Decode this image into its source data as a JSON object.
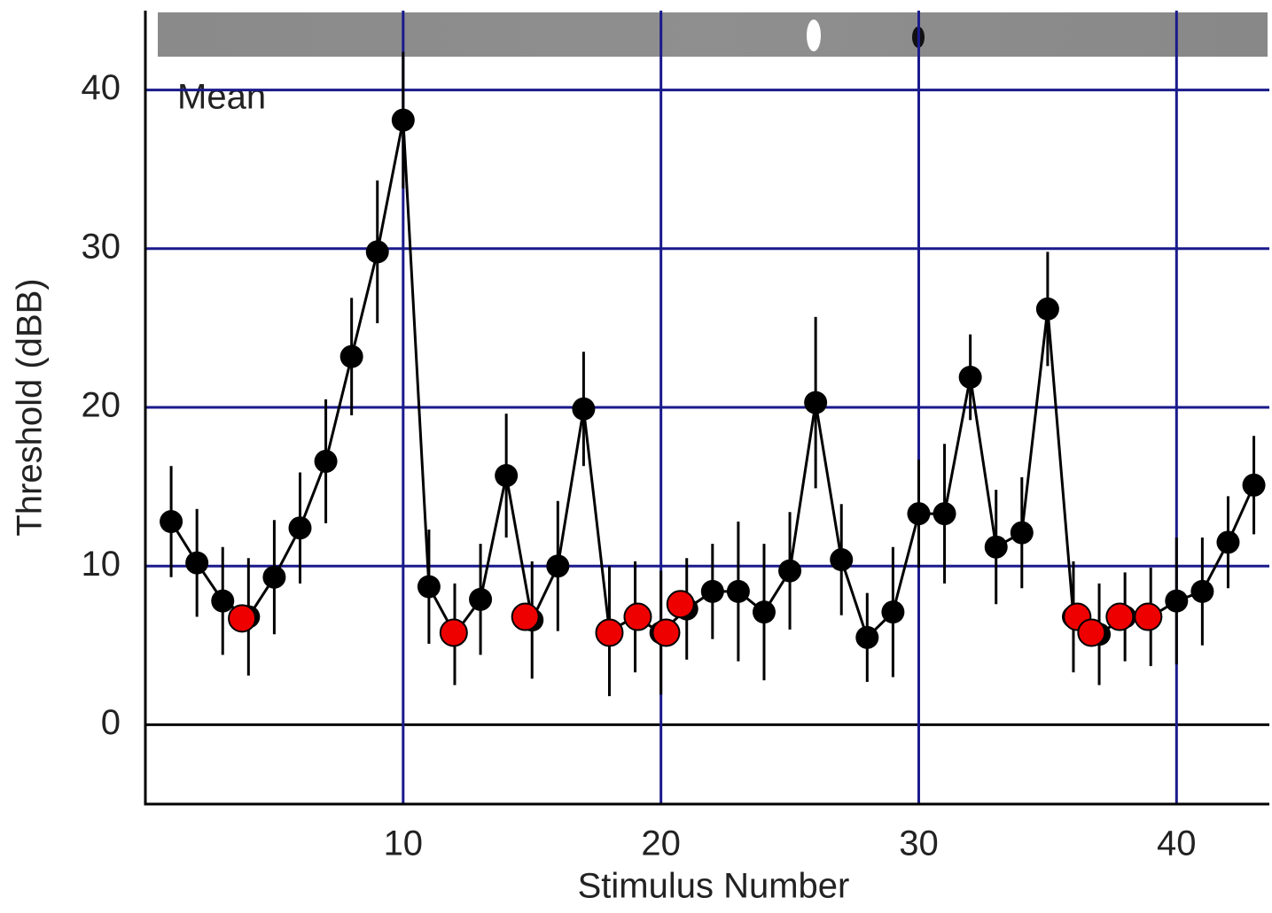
{
  "chart_data": {
    "type": "line",
    "xlabel": "Stimulus Number",
    "ylabel": "Threshold (dBB)",
    "annotation": "Mean",
    "xlim": [
      0,
      43.6
    ],
    "ylim": [
      -5,
      45
    ],
    "xticks": [
      10,
      20,
      30,
      40
    ],
    "yticks": [
      0,
      10,
      20,
      30,
      40
    ],
    "grid": true,
    "grid_color": "#1a1a8c",
    "zero_line_color": "#000000",
    "series": [
      {
        "color": "#000000",
        "style": "line-errorbars",
        "x": [
          1,
          2,
          3,
          4,
          5,
          6,
          7,
          8,
          9,
          10,
          11,
          12,
          13,
          14,
          15,
          16,
          17,
          18,
          19,
          20,
          21,
          22,
          23,
          24,
          25,
          26,
          27,
          28,
          29,
          30,
          31,
          32,
          33,
          34,
          35,
          36,
          37,
          38,
          39,
          40,
          41,
          42,
          43
        ],
        "values": [
          12.8,
          10.2,
          7.8,
          6.8,
          9.3,
          12.4,
          16.6,
          23.2,
          29.8,
          38.1,
          8.7,
          5.7,
          7.9,
          15.7,
          6.6,
          10.0,
          19.9,
          5.9,
          6.8,
          5.8,
          7.3,
          8.4,
          8.4,
          7.1,
          9.7,
          20.3,
          10.4,
          5.5,
          7.1,
          13.3,
          13.3,
          21.9,
          11.2,
          12.1,
          26.2,
          6.8,
          5.7,
          6.8,
          6.8,
          7.8,
          8.4,
          11.5,
          15.1
        ],
        "errors": [
          3.5,
          3.4,
          3.4,
          3.7,
          3.6,
          3.5,
          3.9,
          3.7,
          4.5,
          4.3,
          3.6,
          3.2,
          3.5,
          3.9,
          3.7,
          4.1,
          3.6,
          4.1,
          3.5,
          3.9,
          3.2,
          3.0,
          4.4,
          4.3,
          3.7,
          5.4,
          3.5,
          2.8,
          4.1,
          3.4,
          4.4,
          2.7,
          3.6,
          3.5,
          3.6,
          3.5,
          3.2,
          2.8,
          3.1,
          4.0,
          3.4,
          2.9,
          3.1
        ]
      },
      {
        "color": "#ee0000",
        "style": "markers",
        "x": [
          3.75,
          11.96,
          14.74,
          18.0,
          19.1,
          20.2,
          20.76,
          36.15,
          36.7,
          37.8,
          38.9
        ],
        "values": [
          6.7,
          5.8,
          6.8,
          5.8,
          6.8,
          5.8,
          7.6,
          6.8,
          5.8,
          6.8,
          6.8
        ]
      }
    ]
  }
}
